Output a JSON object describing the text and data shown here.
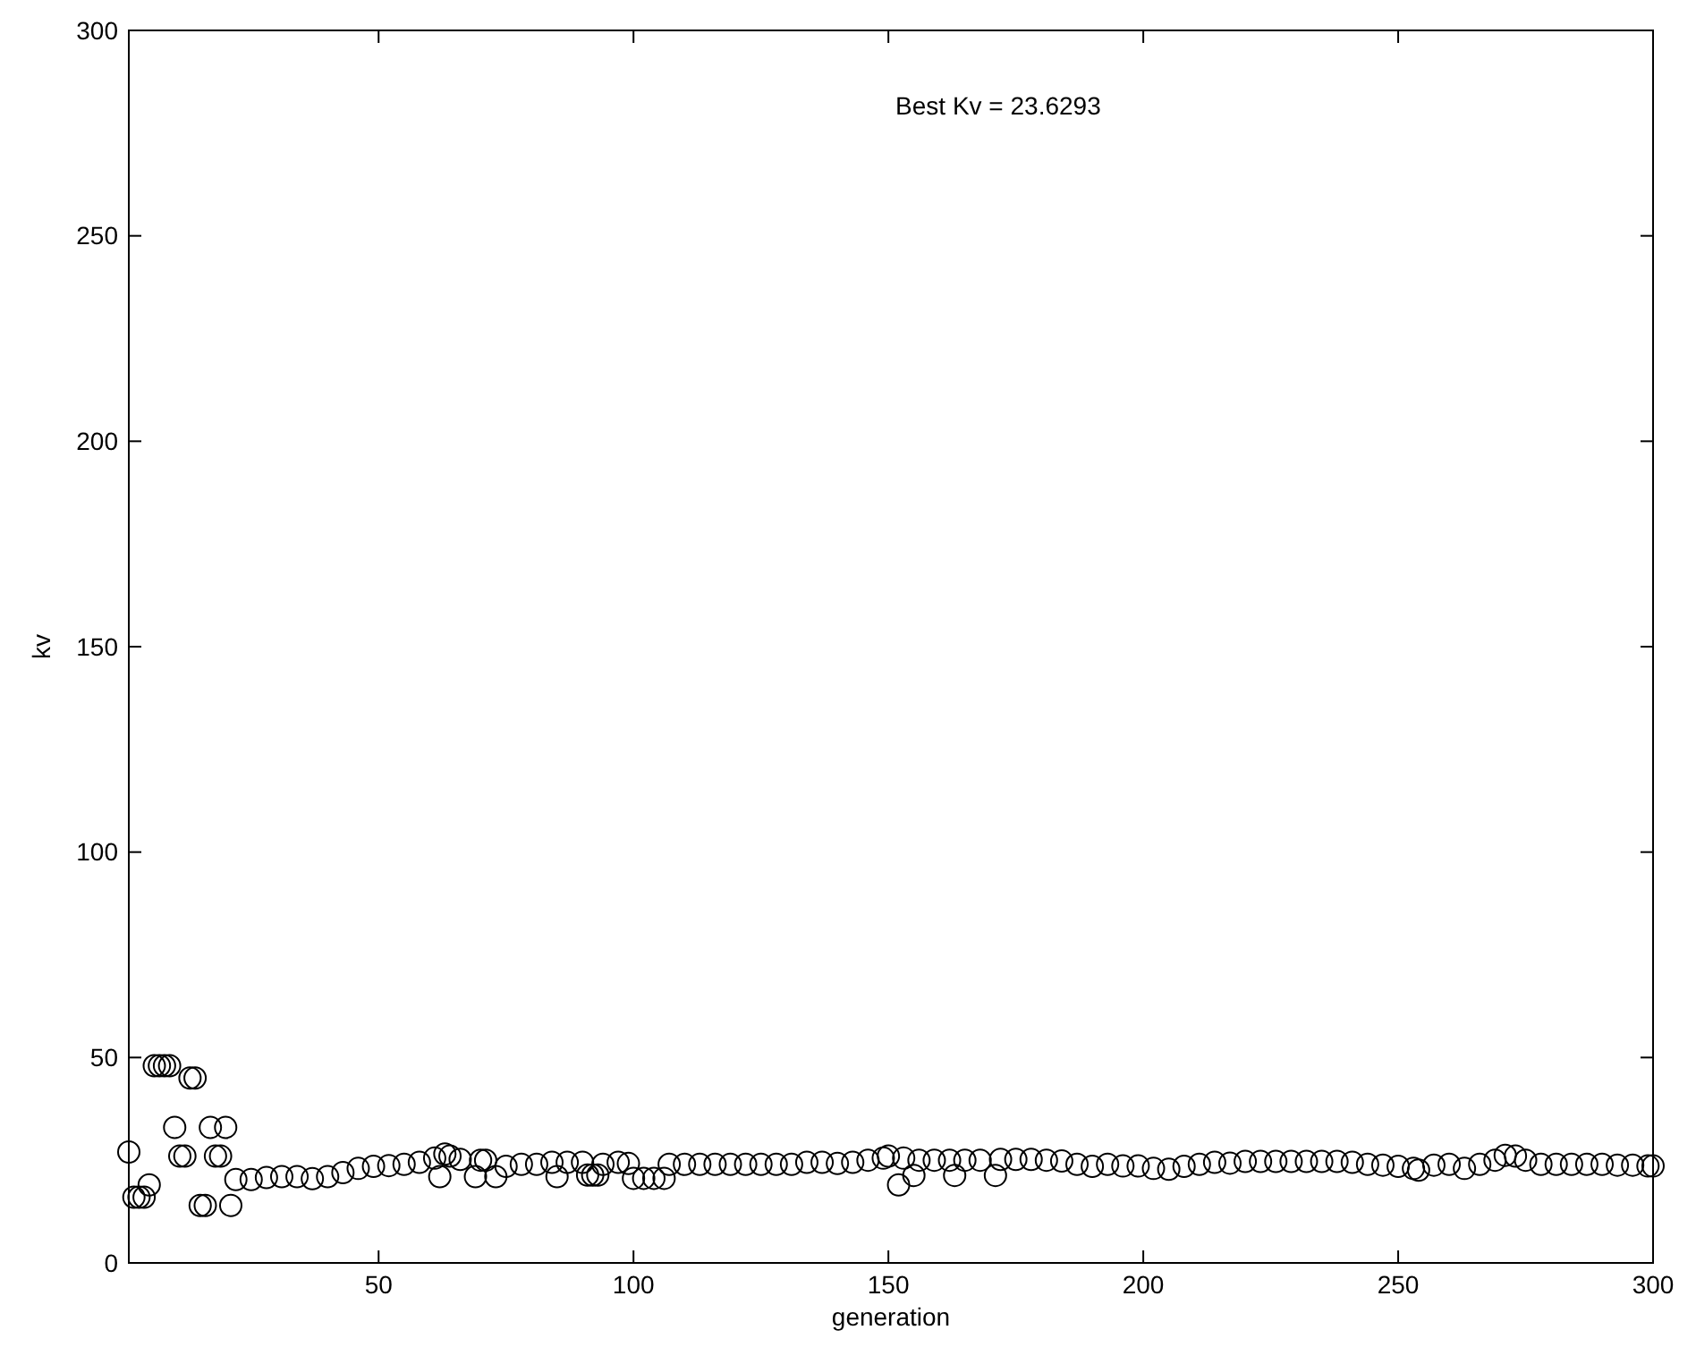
{
  "chart_data": {
    "type": "scatter",
    "xlabel": "generation",
    "ylabel": "kv",
    "annotations": [
      "Best Kv = 23.6293"
    ],
    "xlim": [
      1,
      300
    ],
    "xticks": [
      50,
      100,
      150,
      200,
      250,
      300
    ],
    "ylim": [
      0,
      300
    ],
    "yticks": [
      0,
      50,
      100,
      150,
      200,
      250,
      300
    ],
    "grid": false,
    "marker": "circle",
    "series": [
      {
        "color": "#000000",
        "x": [
          1,
          2,
          3,
          4,
          5,
          6,
          7,
          8,
          9,
          10,
          11,
          12,
          13,
          14,
          15,
          16,
          17,
          18,
          19,
          20,
          21,
          22,
          25,
          28,
          31,
          34,
          37,
          40,
          43,
          46,
          49,
          52,
          55,
          58,
          61,
          62,
          63,
          64,
          66,
          69,
          70,
          71,
          73,
          75,
          78,
          81,
          84,
          85,
          87,
          90,
          91,
          92,
          93,
          94,
          97,
          99,
          100,
          102,
          104,
          106,
          107,
          110,
          113,
          116,
          119,
          122,
          125,
          128,
          131,
          134,
          137,
          140,
          143,
          146,
          149,
          150,
          152,
          153,
          155,
          156,
          159,
          162,
          163,
          165,
          168,
          171,
          172,
          175,
          178,
          181,
          184,
          187,
          190,
          193,
          196,
          199,
          202,
          205,
          208,
          211,
          214,
          217,
          220,
          223,
          226,
          229,
          232,
          235,
          238,
          241,
          244,
          247,
          250,
          253,
          254,
          257,
          260,
          263,
          266,
          269,
          271,
          273,
          275,
          278,
          281,
          284,
          287,
          290,
          293,
          296,
          299,
          300
        ],
        "values": [
          27,
          16,
          16,
          16,
          19,
          48,
          48,
          48,
          48,
          33,
          26,
          26,
          45,
          45,
          14,
          14,
          33,
          26,
          26,
          33,
          14,
          20.3,
          20.3,
          20.8,
          21,
          21,
          20.5,
          21,
          22,
          23,
          23.5,
          23.7,
          24,
          24.5,
          25.5,
          21,
          26.5,
          26,
          25.2,
          21,
          25,
          25,
          21,
          23.5,
          24,
          24,
          24.5,
          21,
          24.5,
          24.5,
          21.4,
          21.4,
          21.4,
          24,
          24.5,
          24.2,
          20.6,
          20.6,
          20.6,
          20.6,
          24,
          24,
          24,
          24,
          24,
          24,
          24,
          24,
          24,
          24.5,
          24.5,
          24.2,
          24.5,
          25,
          25.5,
          26,
          19,
          25.5,
          21.3,
          25,
          25,
          25,
          21.3,
          25,
          25,
          21.3,
          25.2,
          25.2,
          25.2,
          25,
          24.8,
          24,
          23.5,
          24,
          23.6,
          23.6,
          23,
          22.8,
          23.5,
          24,
          24.5,
          24.3,
          24.7,
          24.7,
          24.7,
          24.7,
          24.7,
          24.7,
          24.7,
          24.5,
          24,
          23.8,
          23.5,
          23,
          22.6,
          23.8,
          24,
          23,
          24,
          25,
          26.2,
          26,
          25,
          24,
          24,
          24,
          24,
          24,
          23.8,
          23.8,
          23.6,
          23.6
        ]
      }
    ]
  }
}
